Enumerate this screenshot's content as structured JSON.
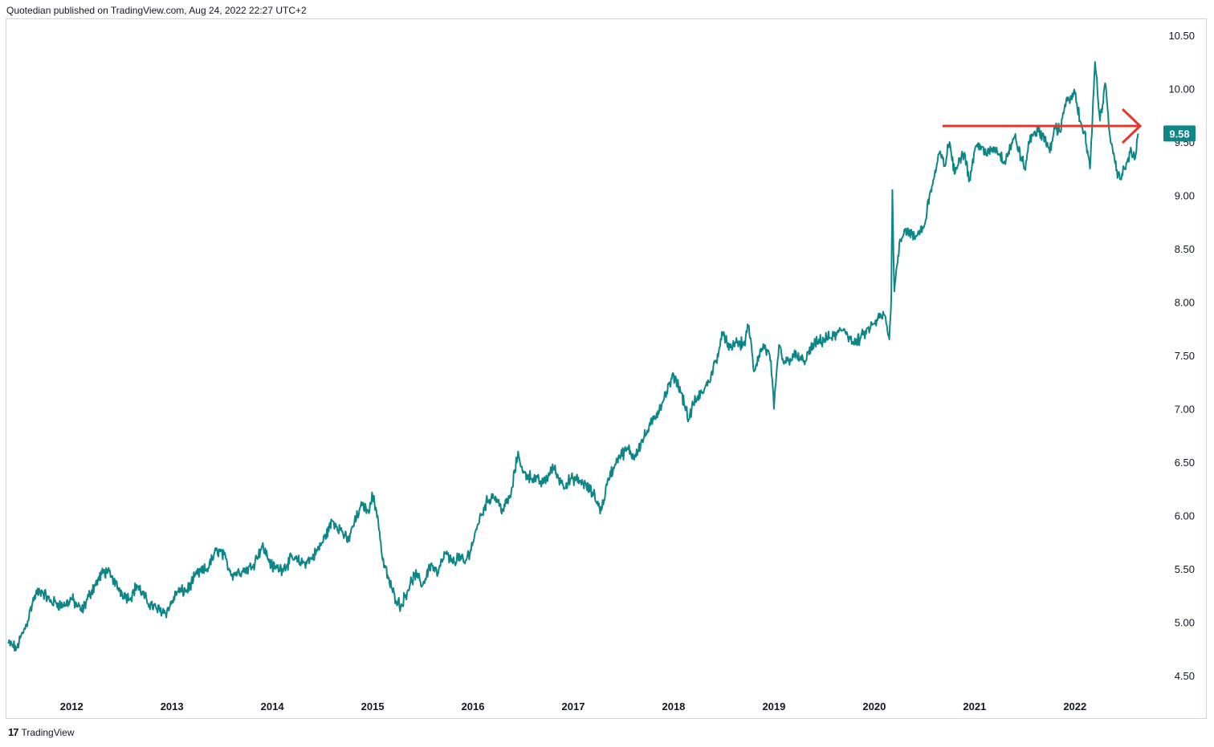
{
  "header": {
    "published_text": "Quotedian published on TradingView.com, Aug 24, 2022 22:27 UTC+2"
  },
  "footer": {
    "brand_mark": "17",
    "brand_name": "TradingView"
  },
  "colors": {
    "line": "#0e8587",
    "annotation": "#e4372b",
    "price_badge": "#0e8587",
    "axis_text": "#131722",
    "border": "#d1d4dc"
  },
  "chart_data": {
    "type": "line",
    "x_tick_labels": [
      "2012",
      "2013",
      "2014",
      "2015",
      "2016",
      "2017",
      "2018",
      "2019",
      "2020",
      "2021",
      "2022"
    ],
    "y_tick_labels": [
      "4.50",
      "5.00",
      "5.50",
      "6.00",
      "6.50",
      "7.00",
      "7.50",
      "8.00",
      "8.50",
      "9.00",
      "9.50",
      "10.00",
      "10.50"
    ],
    "ylim": [
      4.35,
      10.65
    ],
    "xlim": [
      2011.35,
      2022.85
    ],
    "last_value_label": "9.58",
    "annotation": {
      "type": "horizontal-arrow",
      "y": 9.65,
      "x_start": 2020.68,
      "x_end": 2022.65
    },
    "series": [
      {
        "x": [
          2011.37,
          2011.45,
          2011.55,
          2011.63,
          2011.7,
          2011.78,
          2011.85,
          2011.92,
          2012.0,
          2012.1,
          2012.2,
          2012.3,
          2012.35,
          2012.42,
          2012.5,
          2012.58,
          2012.65,
          2012.75,
          2012.85,
          2012.95,
          2013.05,
          2013.15,
          2013.25,
          2013.35,
          2013.45,
          2013.5,
          2013.6,
          2013.7,
          2013.8,
          2013.9,
          2014.0,
          2014.1,
          2014.2,
          2014.3,
          2014.4,
          2014.5,
          2014.6,
          2014.7,
          2014.75,
          2014.8,
          2014.9,
          2014.95,
          2015.0,
          2015.05,
          2015.1,
          2015.2,
          2015.28,
          2015.35,
          2015.42,
          2015.5,
          2015.58,
          2015.65,
          2015.72,
          2015.8,
          2015.85,
          2015.92,
          2016.0,
          2016.05,
          2016.12,
          2016.2,
          2016.3,
          2016.38,
          2016.45,
          2016.5,
          2016.6,
          2016.7,
          2016.8,
          2016.9,
          2017.0,
          2017.1,
          2017.2,
          2017.28,
          2017.35,
          2017.4,
          2017.45,
          2017.55,
          2017.6,
          2017.7,
          2017.8,
          2017.9,
          2018.0,
          2018.08,
          2018.15,
          2018.2,
          2018.28,
          2018.35,
          2018.42,
          2018.5,
          2018.55,
          2018.62,
          2018.7,
          2018.75,
          2018.8,
          2018.85,
          2018.9,
          2018.97,
          2019.0,
          2019.05,
          2019.1,
          2019.2,
          2019.3,
          2019.4,
          2019.5,
          2019.6,
          2019.7,
          2019.8,
          2019.9,
          2020.0,
          2020.05,
          2020.1,
          2020.15,
          2020.17,
          2020.18,
          2020.2,
          2020.25,
          2020.3,
          2020.35,
          2020.4,
          2020.5,
          2020.55,
          2020.6,
          2020.65,
          2020.7,
          2020.75,
          2020.8,
          2020.85,
          2020.9,
          2020.95,
          2021.0,
          2021.05,
          2021.1,
          2021.2,
          2021.3,
          2021.4,
          2021.5,
          2021.55,
          2021.6,
          2021.7,
          2021.75,
          2021.8,
          2021.85,
          2021.9,
          2022.0,
          2022.05,
          2022.1,
          2022.12,
          2022.15,
          2022.2,
          2022.25,
          2022.3,
          2022.35,
          2022.4,
          2022.45,
          2022.5,
          2022.55,
          2022.6,
          2022.63
        ],
        "y": [
          4.8,
          4.76,
          4.98,
          5.25,
          5.3,
          5.2,
          5.18,
          5.15,
          5.22,
          5.1,
          5.3,
          5.45,
          5.48,
          5.38,
          5.28,
          5.22,
          5.35,
          5.2,
          5.12,
          5.1,
          5.28,
          5.3,
          5.45,
          5.5,
          5.68,
          5.65,
          5.45,
          5.48,
          5.52,
          5.72,
          5.52,
          5.5,
          5.6,
          5.55,
          5.6,
          5.75,
          5.95,
          5.85,
          5.75,
          5.9,
          6.1,
          6.05,
          6.18,
          6.0,
          5.58,
          5.28,
          5.15,
          5.3,
          5.45,
          5.35,
          5.55,
          5.45,
          5.65,
          5.55,
          5.62,
          5.55,
          5.75,
          5.92,
          6.1,
          6.2,
          6.05,
          6.2,
          6.6,
          6.4,
          6.35,
          6.3,
          6.45,
          6.28,
          6.35,
          6.3,
          6.2,
          6.05,
          6.35,
          6.45,
          6.55,
          6.62,
          6.55,
          6.72,
          6.9,
          7.08,
          7.32,
          7.15,
          6.9,
          7.05,
          7.15,
          7.25,
          7.45,
          7.72,
          7.55,
          7.62,
          7.6,
          7.78,
          7.35,
          7.5,
          7.6,
          7.45,
          7.0,
          7.6,
          7.42,
          7.5,
          7.45,
          7.6,
          7.65,
          7.68,
          7.75,
          7.6,
          7.7,
          7.8,
          7.85,
          7.88,
          7.65,
          8.05,
          9.05,
          8.1,
          8.55,
          8.68,
          8.65,
          8.6,
          8.72,
          9.0,
          9.18,
          9.4,
          9.28,
          9.5,
          9.2,
          9.35,
          9.4,
          9.15,
          9.42,
          9.48,
          9.38,
          9.45,
          9.32,
          9.55,
          9.25,
          9.52,
          9.6,
          9.55,
          9.4,
          9.65,
          9.6,
          9.85,
          9.95,
          9.7,
          9.6,
          9.4,
          9.25,
          10.25,
          9.7,
          10.05,
          9.55,
          9.3,
          9.15,
          9.25,
          9.4,
          9.35,
          9.58
        ]
      }
    ]
  }
}
